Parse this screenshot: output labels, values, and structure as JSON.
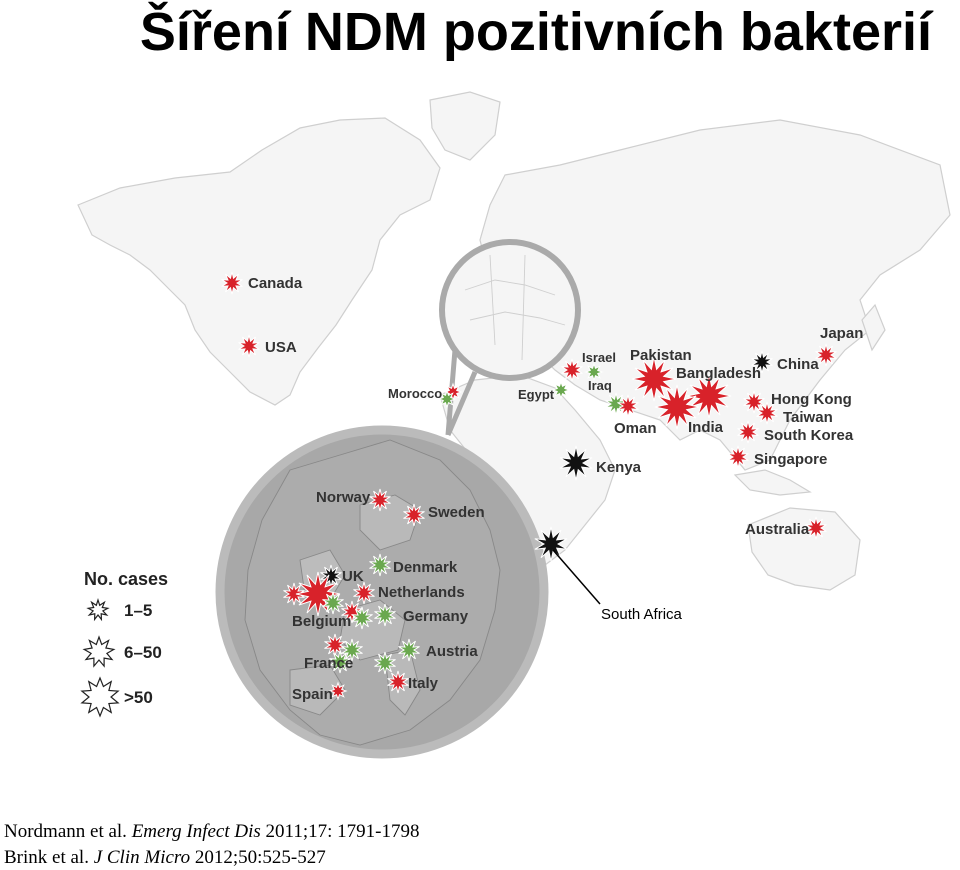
{
  "title": "Šíření NDM pozitivních bakterií",
  "colors": {
    "red": "#d8222a",
    "green": "#6aa84f",
    "black": "#111111",
    "europe": "#a9a9a9",
    "land": "#f4f4f4",
    "border": "#c8c8c8"
  },
  "legend": {
    "title": "No. cases",
    "items": [
      {
        "label": "1–5",
        "size": "small"
      },
      {
        "label": "6–50",
        "size": "medium"
      },
      {
        "label": ">50",
        "size": "large"
      }
    ]
  },
  "countries": {
    "canada": "Canada",
    "usa": "USA",
    "morocco": "Morocco",
    "egypt": "Egypt",
    "israel": "Israel",
    "iraq": "Iraq",
    "oman": "Oman",
    "kenya": "Kenya",
    "pakistan": "Pakistan",
    "bangladesh": "Bangladesh",
    "india": "India",
    "china": "China",
    "japan": "Japan",
    "hong_kong": "Hong Kong",
    "taiwan": "Taiwan",
    "south_korea": "South Korea",
    "singapore": "Singapore",
    "australia": "Australia",
    "south_africa": "South Africa",
    "norway": "Norway",
    "sweden": "Sweden",
    "uk": "UK",
    "denmark": "Denmark",
    "netherlands": "Netherlands",
    "belgium": "Belgium",
    "germany": "Germany",
    "france": "France",
    "austria": "Austria",
    "italy": "Italy",
    "spain": "Spain"
  },
  "references": [
    {
      "authors": "Nordmann et al. ",
      "journal": "Emerg Infect Dis",
      "details": " 2011;17: 1791-1798"
    },
    {
      "authors": "Brink et al. ",
      "journal": "J Clin Micro",
      "details": " 2012;50:525-527"
    }
  ]
}
